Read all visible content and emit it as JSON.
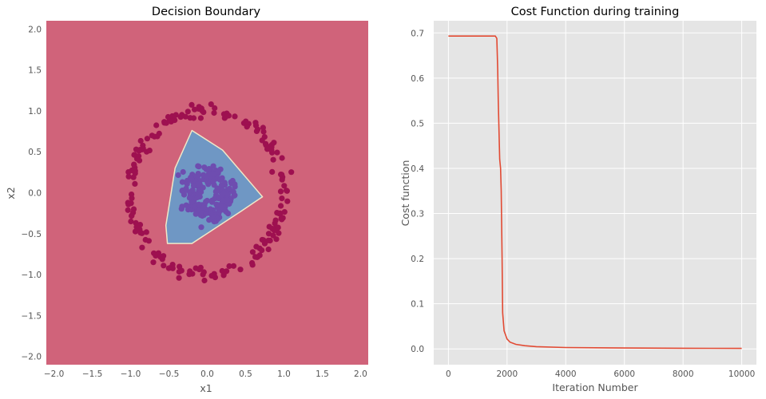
{
  "chart_data": [
    {
      "type": "scatter",
      "title": "Decision Boundary",
      "xlabel": "x1",
      "ylabel": "x2",
      "xlim": [
        -2.1,
        2.1
      ],
      "ylim": [
        -2.1,
        2.1
      ],
      "xticks": [
        "−2.0",
        "−1.5",
        "−1.0",
        "−0.5",
        "0.0",
        "0.5",
        "1.0",
        "1.5",
        "2.0"
      ],
      "xtick_values": [
        -2.0,
        -1.5,
        -1.0,
        -0.5,
        0.0,
        0.5,
        1.0,
        1.5,
        2.0
      ],
      "yticks": [
        "2.0",
        "1.5",
        "1.0",
        "0.5",
        "0.0",
        "−0.5",
        "−1.0",
        "−1.5",
        "−2.0"
      ],
      "ytick_values": [
        2.0,
        1.5,
        1.0,
        0.5,
        0.0,
        -0.5,
        -1.0,
        -1.5,
        -2.0
      ],
      "background_region_color": "#d0637a",
      "decision_region": {
        "color": "#6f97c4",
        "polygon": [
          [
            -0.2,
            0.76
          ],
          [
            0.2,
            0.52
          ],
          [
            0.62,
            0.06
          ],
          [
            0.72,
            -0.05
          ],
          [
            0.45,
            -0.22
          ],
          [
            -0.2,
            -0.62
          ],
          [
            -0.52,
            -0.62
          ],
          [
            -0.54,
            -0.4
          ],
          [
            -0.42,
            0.3
          ]
        ]
      },
      "outer_class": {
        "color": "#9e1050",
        "radius_mean": 1.0,
        "radius_spread": 0.08,
        "count": 200
      },
      "inner_class": {
        "color": "#6e4db0",
        "radius_mean": 0.25,
        "radius_spread": 0.12,
        "count": 200
      }
    },
    {
      "type": "line",
      "title": "Cost Function during training",
      "xlabel": "Iteration Number",
      "ylabel": "Cost function",
      "xlim": [
        -500,
        10500
      ],
      "ylim": [
        -0.035,
        0.727
      ],
      "xticks": [
        "0",
        "2000",
        "4000",
        "6000",
        "8000",
        "10000"
      ],
      "xtick_values": [
        0,
        2000,
        4000,
        6000,
        8000,
        10000
      ],
      "yticks": [
        "0.7",
        "0.6",
        "0.5",
        "0.4",
        "0.3",
        "0.2",
        "0.1",
        "0.0"
      ],
      "ytick_values": [
        0.7,
        0.6,
        0.5,
        0.4,
        0.3,
        0.2,
        0.1,
        0.0
      ],
      "grid": true,
      "color": "#e24a33",
      "x": [
        0,
        1500,
        1600,
        1650,
        1680,
        1700,
        1750,
        1780,
        1800,
        1830,
        1850,
        1900,
        2000,
        2100,
        2300,
        2600,
        3000,
        4000,
        6000,
        8000,
        10000
      ],
      "y": [
        0.693,
        0.693,
        0.693,
        0.688,
        0.62,
        0.55,
        0.42,
        0.4,
        0.35,
        0.2,
        0.08,
        0.04,
        0.022,
        0.015,
        0.01,
        0.007,
        0.005,
        0.003,
        0.002,
        0.0015,
        0.001
      ]
    }
  ]
}
